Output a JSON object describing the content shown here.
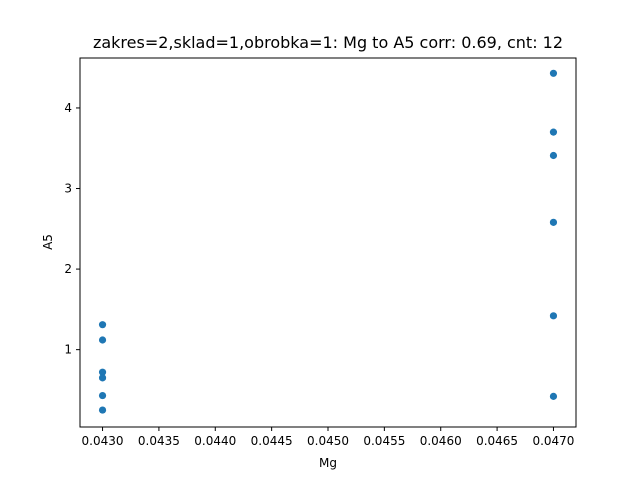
{
  "chart_data": {
    "type": "scatter",
    "title": "zakres=2,sklad=1,obrobka=1: Mg to A5 corr: 0.69, cnt: 12",
    "xlabel": "Mg",
    "ylabel": "A5",
    "xlim": [
      0.0428,
      0.0472
    ],
    "ylim": [
      0.04,
      4.62
    ],
    "xticks": [
      0.043,
      0.0435,
      0.044,
      0.0445,
      0.045,
      0.0455,
      0.046,
      0.0465,
      0.047
    ],
    "xtick_labels": [
      "0.0430",
      "0.0435",
      "0.0440",
      "0.0445",
      "0.0450",
      "0.0455",
      "0.0460",
      "0.0465",
      "0.0470"
    ],
    "yticks": [
      1,
      2,
      3,
      4
    ],
    "ytick_labels": [
      "1",
      "2",
      "3",
      "4"
    ],
    "grid": false,
    "marker_color": "#1f77b4",
    "points": [
      {
        "x": 0.043,
        "y": 1.31
      },
      {
        "x": 0.043,
        "y": 1.12
      },
      {
        "x": 0.043,
        "y": 0.72
      },
      {
        "x": 0.043,
        "y": 0.65
      },
      {
        "x": 0.043,
        "y": 0.43
      },
      {
        "x": 0.043,
        "y": 0.25
      },
      {
        "x": 0.047,
        "y": 4.43
      },
      {
        "x": 0.047,
        "y": 3.7
      },
      {
        "x": 0.047,
        "y": 3.41
      },
      {
        "x": 0.047,
        "y": 2.58
      },
      {
        "x": 0.047,
        "y": 1.42
      },
      {
        "x": 0.047,
        "y": 0.42
      }
    ]
  }
}
